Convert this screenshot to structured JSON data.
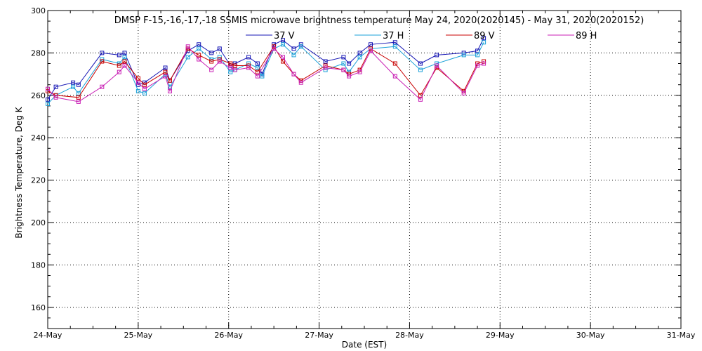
{
  "chart_data": {
    "type": "line",
    "title": "DMSP F-15,-16,-17,-18 SSMIS microwave brightness temperature May 24, 2020(2020145) - May 31, 2020(2020152)",
    "xlabel": "Date (EST)",
    "ylabel": "Brightness Temperature, Deg K",
    "xlim": [
      0,
      7
    ],
    "ylim": [
      150,
      300
    ],
    "x_ticks": [
      0,
      1,
      2,
      3,
      4,
      5,
      6,
      7
    ],
    "x_tick_labels": [
      "24-May",
      "25-May",
      "26-May",
      "27-May",
      "28-May",
      "29-May",
      "30-May",
      "31-May"
    ],
    "y_ticks": [
      160,
      180,
      200,
      220,
      240,
      260,
      280,
      300
    ],
    "grid": true,
    "legend_position": "top-center",
    "series": [
      {
        "name": "37 V",
        "color": "#1515b4",
        "x": [
          0.0,
          0.09,
          0.28,
          0.34,
          0.6,
          0.79,
          0.85,
          1.0,
          1.07,
          1.3,
          1.35,
          1.55,
          1.67,
          1.81,
          1.9,
          2.02,
          2.07,
          2.22,
          2.32,
          2.37,
          2.5,
          2.6,
          2.72,
          2.8,
          3.07,
          3.27,
          3.33,
          3.45,
          3.57,
          3.84,
          4.12,
          4.3,
          4.6,
          4.75,
          4.82
        ],
        "y": [
          258,
          264,
          266,
          265,
          280,
          279,
          280,
          265,
          266,
          273,
          267,
          281,
          284,
          280,
          282,
          274,
          275,
          278,
          275,
          270,
          284,
          286,
          282,
          284,
          276,
          278,
          275,
          280,
          284,
          285,
          275,
          279,
          280,
          281,
          287
        ]
      },
      {
        "name": "37 H",
        "color": "#1aa0d8",
        "x": [
          0.0,
          0.09,
          0.28,
          0.34,
          0.6,
          0.79,
          0.85,
          1.0,
          1.07,
          1.3,
          1.35,
          1.55,
          1.67,
          1.81,
          1.9,
          2.02,
          2.07,
          2.22,
          2.32,
          2.37,
          2.5,
          2.6,
          2.72,
          2.8,
          3.07,
          3.27,
          3.33,
          3.45,
          3.57,
          3.84,
          4.12,
          4.3,
          4.6,
          4.75,
          4.82
        ],
        "y": [
          256,
          260,
          264,
          261,
          277,
          275,
          278,
          262,
          261,
          270,
          264,
          278,
          282,
          277,
          278,
          271,
          272,
          275,
          273,
          269,
          282,
          284,
          279,
          283,
          272,
          275,
          271,
          278,
          282,
          283,
          272,
          275,
          279,
          279,
          285
        ]
      },
      {
        "name": "89 V",
        "color": "#c80000",
        "x": [
          0.0,
          0.09,
          0.34,
          0.6,
          0.79,
          0.85,
          1.0,
          1.07,
          1.3,
          1.35,
          1.55,
          1.67,
          1.81,
          1.9,
          2.02,
          2.07,
          2.22,
          2.32,
          2.5,
          2.6,
          2.72,
          2.8,
          3.07,
          3.27,
          3.33,
          3.45,
          3.57,
          3.84,
          4.12,
          4.3,
          4.6,
          4.75,
          4.82
        ],
        "y": [
          262,
          260,
          259,
          276,
          274,
          276,
          268,
          265,
          271,
          267,
          282,
          279,
          276,
          277,
          275,
          274,
          274,
          271,
          283,
          276,
          270,
          267,
          274,
          272,
          270,
          272,
          282,
          275,
          260,
          273,
          262,
          275,
          276
        ]
      },
      {
        "name": "89 H",
        "color": "#c81eb4",
        "x": [
          0.0,
          0.09,
          0.34,
          0.6,
          0.79,
          0.85,
          1.0,
          1.07,
          1.3,
          1.35,
          1.55,
          1.67,
          1.81,
          1.9,
          2.02,
          2.07,
          2.22,
          2.32,
          2.5,
          2.6,
          2.72,
          2.8,
          3.07,
          3.27,
          3.33,
          3.45,
          3.57,
          3.84,
          4.12,
          4.3,
          4.6,
          4.75,
          4.82
        ],
        "y": [
          263,
          259,
          257,
          264,
          271,
          274,
          266,
          263,
          269,
          262,
          283,
          277,
          272,
          276,
          273,
          272,
          273,
          269,
          282,
          278,
          270,
          266,
          273,
          272,
          269,
          271,
          281,
          269,
          258,
          274,
          261,
          274,
          275
        ]
      }
    ]
  }
}
